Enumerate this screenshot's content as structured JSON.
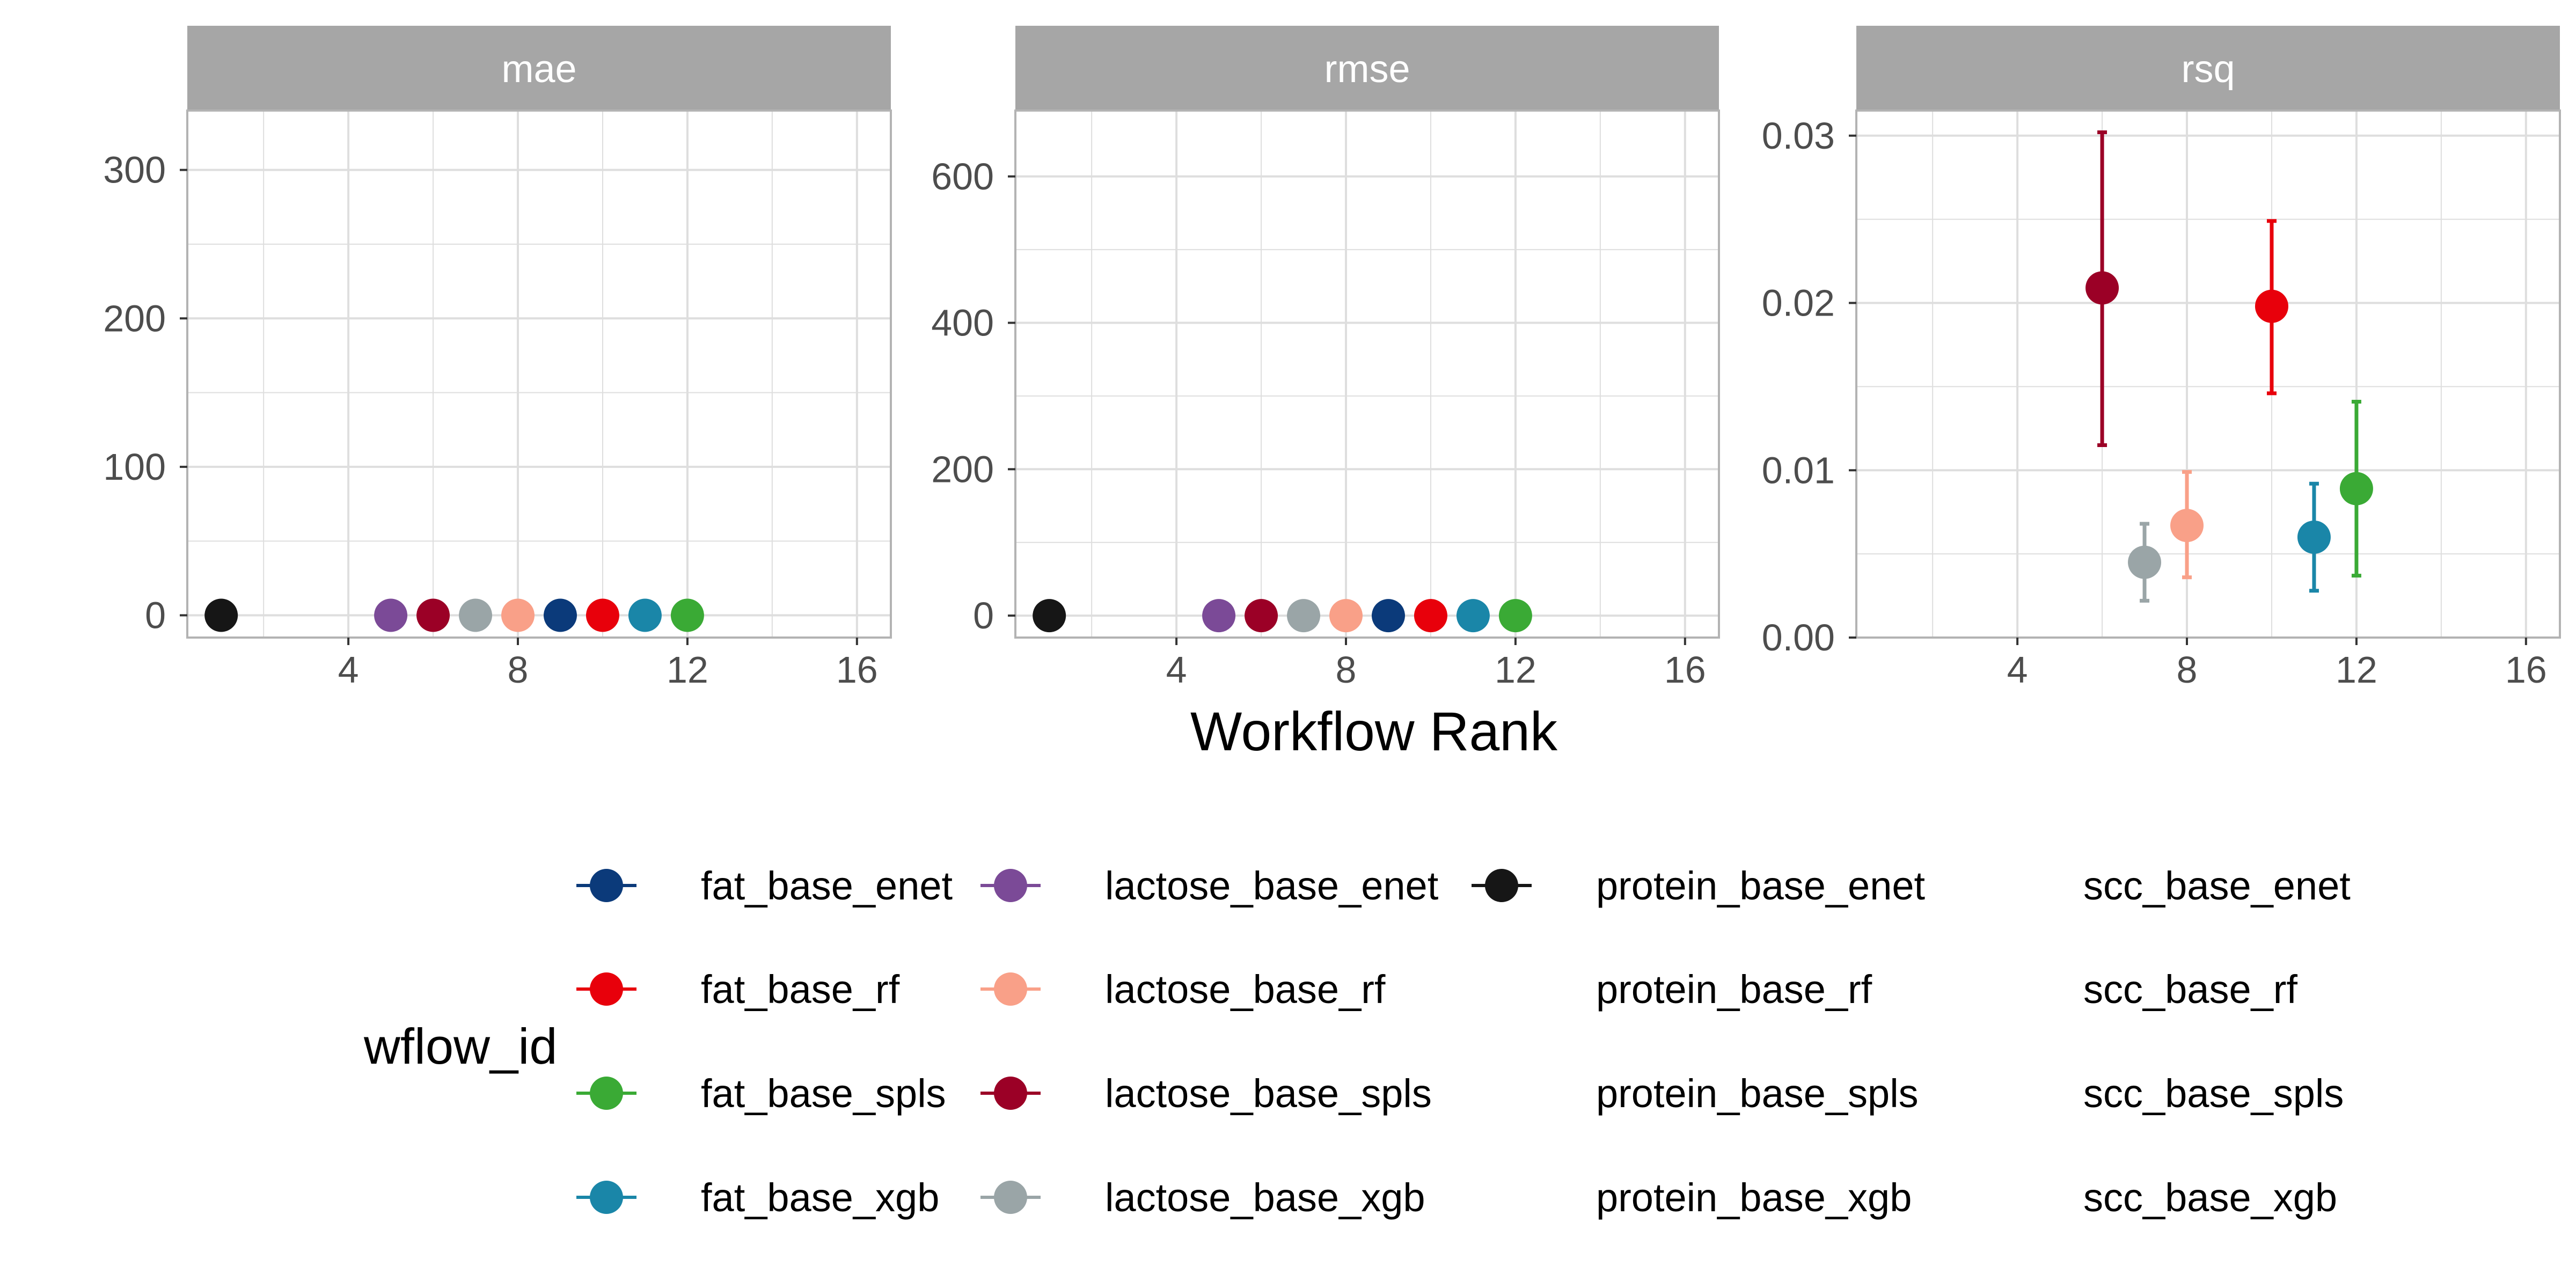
{
  "chart_data": {
    "type": "scatter",
    "facet_by": "metric",
    "xlabel": "Workflow Rank",
    "x_ticks": [
      4,
      8,
      12,
      16
    ],
    "xlim": [
      0.2,
      16.8
    ],
    "grid": true,
    "error_bars": true,
    "colors": {
      "fat_base_enet": "#0b3a7a",
      "fat_base_rf": "#e8000b",
      "fat_base_spls": "#3aaa35",
      "fat_base_xgb": "#1a86a8",
      "lactose_base_enet": "#7b4a97",
      "lactose_base_rf": "#f9a088",
      "lactose_base_spls": "#9b0026",
      "lactose_base_xgb": "#9aa5a7",
      "protein_base_enet": "#161616",
      "strip": "#a6a6a6",
      "grid": "#dedede",
      "panel_border": "#b3b3b3",
      "text": "#4d4d4d"
    },
    "panels": [
      {
        "title": "mae",
        "ylim": [
          -15,
          340
        ],
        "y_ticks": [
          0,
          100,
          200,
          300
        ],
        "y_tick_labels": [
          "0",
          "100",
          "200",
          "300"
        ],
        "points": [
          {
            "id": "protein_base_enet",
            "x": 1,
            "y": 0
          },
          {
            "id": "lactose_base_enet",
            "x": 5,
            "y": 0
          },
          {
            "id": "lactose_base_spls",
            "x": 6,
            "y": 0
          },
          {
            "id": "lactose_base_xgb",
            "x": 7,
            "y": 0
          },
          {
            "id": "lactose_base_rf",
            "x": 8,
            "y": 0
          },
          {
            "id": "fat_base_enet",
            "x": 9,
            "y": 0
          },
          {
            "id": "fat_base_rf",
            "x": 10,
            "y": 0
          },
          {
            "id": "fat_base_xgb",
            "x": 11,
            "y": 0
          },
          {
            "id": "fat_base_spls",
            "x": 12,
            "y": 0
          }
        ]
      },
      {
        "title": "rmse",
        "ylim": [
          -30,
          690
        ],
        "y_ticks": [
          0,
          200,
          400,
          600
        ],
        "y_tick_labels": [
          "0",
          "200",
          "400",
          "600"
        ],
        "points": [
          {
            "id": "protein_base_enet",
            "x": 1,
            "y": 0
          },
          {
            "id": "lactose_base_enet",
            "x": 5,
            "y": 0
          },
          {
            "id": "lactose_base_spls",
            "x": 6,
            "y": 0
          },
          {
            "id": "lactose_base_xgb",
            "x": 7,
            "y": 0
          },
          {
            "id": "lactose_base_rf",
            "x": 8,
            "y": 0
          },
          {
            "id": "fat_base_enet",
            "x": 9,
            "y": 0
          },
          {
            "id": "fat_base_rf",
            "x": 10,
            "y": 0
          },
          {
            "id": "fat_base_xgb",
            "x": 11,
            "y": 0
          },
          {
            "id": "fat_base_spls",
            "x": 12,
            "y": 0
          }
        ]
      },
      {
        "title": "rsq",
        "ylim": [
          0,
          0.0315
        ],
        "y_ticks": [
          0,
          0.01,
          0.02,
          0.03
        ],
        "y_tick_labels": [
          "0.00",
          "0.01",
          "0.02",
          "0.03"
        ],
        "points": [
          {
            "id": "lactose_base_spls",
            "x": 6,
            "y": 0.0209,
            "ymin": 0.0115,
            "ymax": 0.0302
          },
          {
            "id": "lactose_base_xgb",
            "x": 7,
            "y": 0.0045,
            "ymin": 0.0022,
            "ymax": 0.0068
          },
          {
            "id": "lactose_base_rf",
            "x": 8,
            "y": 0.0067,
            "ymin": 0.0036,
            "ymax": 0.0099
          },
          {
            "id": "fat_base_rf",
            "x": 10,
            "y": 0.0198,
            "ymin": 0.0146,
            "ymax": 0.0249
          },
          {
            "id": "fat_base_xgb",
            "x": 11,
            "y": 0.006,
            "ymin": 0.0028,
            "ymax": 0.0092
          },
          {
            "id": "fat_base_spls",
            "x": 12,
            "y": 0.0089,
            "ymin": 0.0037,
            "ymax": 0.0141
          }
        ]
      }
    ],
    "legend": {
      "title": "wflow_id",
      "placement": "bottom",
      "columns": [
        [
          {
            "label": "fat_base_enet",
            "color": "#0b3a7a"
          },
          {
            "label": "fat_base_rf",
            "color": "#e8000b"
          },
          {
            "label": "fat_base_spls",
            "color": "#3aaa35"
          },
          {
            "label": "fat_base_xgb",
            "color": "#1a86a8"
          }
        ],
        [
          {
            "label": "lactose_base_enet",
            "color": "#7b4a97"
          },
          {
            "label": "lactose_base_rf",
            "color": "#f9a088"
          },
          {
            "label": "lactose_base_spls",
            "color": "#9b0026"
          },
          {
            "label": "lactose_base_xgb",
            "color": "#9aa5a7"
          }
        ],
        [
          {
            "label": "protein_base_enet",
            "color": "#161616"
          },
          {
            "label": "protein_base_rf",
            "color": ""
          },
          {
            "label": "protein_base_spls",
            "color": ""
          },
          {
            "label": "protein_base_xgb",
            "color": ""
          }
        ],
        [
          {
            "label": "scc_base_enet",
            "color": ""
          },
          {
            "label": "scc_base_rf",
            "color": ""
          },
          {
            "label": "scc_base_spls",
            "color": ""
          },
          {
            "label": "scc_base_xgb",
            "color": ""
          }
        ]
      ]
    }
  }
}
